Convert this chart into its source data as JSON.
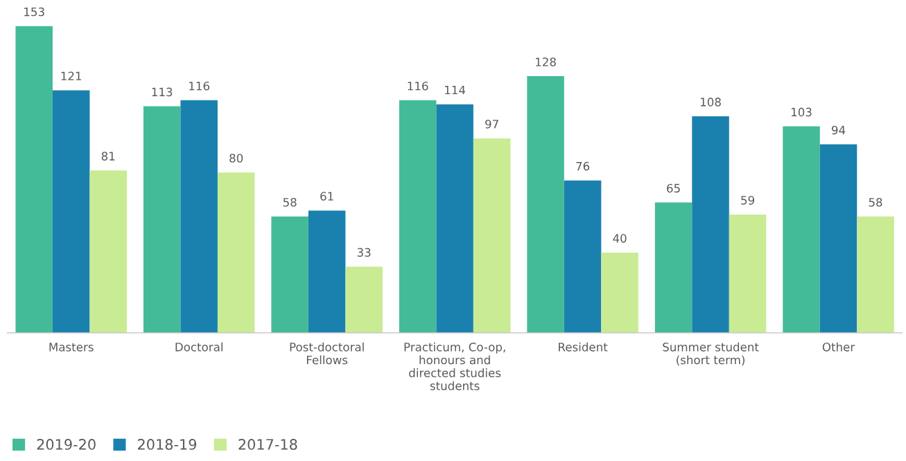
{
  "chart_data": {
    "type": "bar",
    "categories": [
      "Masters",
      "Doctoral",
      "Post-doctoral\nFellows",
      "Practicum, Co-op,\nhonours and\ndirected studies\nstudents",
      "Resident",
      "Summer student\n(short term)",
      "Other"
    ],
    "series": [
      {
        "name": "2019-20",
        "color": "#43bb98",
        "values": [
          153,
          113,
          58,
          116,
          128,
          65,
          103
        ]
      },
      {
        "name": "2018-19",
        "color": "#1a81af",
        "values": [
          121,
          116,
          61,
          114,
          76,
          108,
          94
        ]
      },
      {
        "name": "2017-18",
        "color": "#c8eb94",
        "values": [
          81,
          80,
          33,
          97,
          40,
          59,
          58
        ]
      }
    ],
    "data_labels": true,
    "legend": "bottom left",
    "grid": false,
    "tick_labels": "x"
  }
}
